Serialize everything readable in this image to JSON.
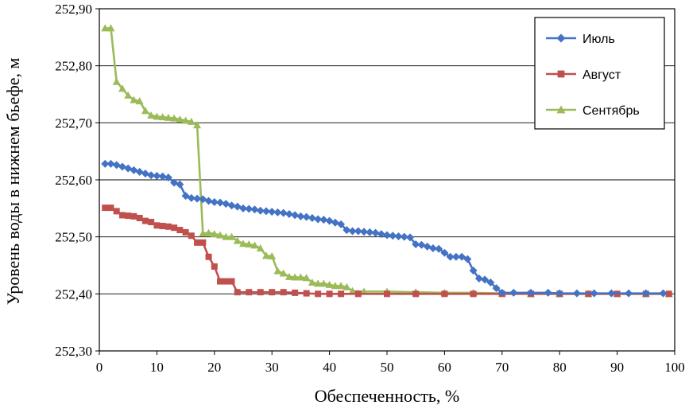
{
  "chart_data": {
    "type": "line",
    "xlabel": "Обеспеченность, %",
    "ylabel": "Уровень воды в нижнем бьефе, м",
    "xlim": [
      0,
      100
    ],
    "ylim": [
      252.3,
      252.9
    ],
    "x_ticks": [
      "0",
      "10",
      "20",
      "30",
      "40",
      "50",
      "60",
      "70",
      "80",
      "90",
      "100"
    ],
    "y_ticks": [
      "252,30",
      "252,40",
      "252,50",
      "252,60",
      "252,70",
      "252,80",
      "252,90"
    ],
    "grid": "horizontal",
    "legend_position": "top-right",
    "series": [
      {
        "name": "Июль",
        "color": "#4472C4",
        "marker": "diamond",
        "points": [
          [
            1,
            252.628
          ],
          [
            2,
            252.628
          ],
          [
            3,
            252.626
          ],
          [
            4,
            252.623
          ],
          [
            5,
            252.62
          ],
          [
            6,
            252.617
          ],
          [
            7,
            252.614
          ],
          [
            8,
            252.611
          ],
          [
            9,
            252.608
          ],
          [
            10,
            252.607
          ],
          [
            11,
            252.606
          ],
          [
            12,
            252.604
          ],
          [
            13,
            252.595
          ],
          [
            14,
            252.592
          ],
          [
            15,
            252.572
          ],
          [
            16,
            252.568
          ],
          [
            17,
            252.567
          ],
          [
            18,
            252.566
          ],
          [
            19,
            252.563
          ],
          [
            20,
            252.561
          ],
          [
            21,
            252.56
          ],
          [
            22,
            252.558
          ],
          [
            23,
            252.555
          ],
          [
            24,
            252.553
          ],
          [
            25,
            252.55
          ],
          [
            26,
            252.549
          ],
          [
            27,
            252.548
          ],
          [
            28,
            252.546
          ],
          [
            29,
            252.545
          ],
          [
            30,
            252.544
          ],
          [
            31,
            252.543
          ],
          [
            32,
            252.542
          ],
          [
            33,
            252.54
          ],
          [
            34,
            252.538
          ],
          [
            35,
            252.536
          ],
          [
            36,
            252.535
          ],
          [
            37,
            252.533
          ],
          [
            38,
            252.531
          ],
          [
            39,
            252.53
          ],
          [
            40,
            252.528
          ],
          [
            41,
            252.525
          ],
          [
            42,
            252.522
          ],
          [
            43,
            252.512
          ],
          [
            44,
            252.51
          ],
          [
            45,
            252.51
          ],
          [
            46,
            252.509
          ],
          [
            47,
            252.508
          ],
          [
            48,
            252.507
          ],
          [
            49,
            252.505
          ],
          [
            50,
            252.503
          ],
          [
            51,
            252.502
          ],
          [
            52,
            252.501
          ],
          [
            53,
            252.5
          ],
          [
            54,
            252.499
          ],
          [
            55,
            252.487
          ],
          [
            56,
            252.486
          ],
          [
            57,
            252.483
          ],
          [
            58,
            252.48
          ],
          [
            59,
            252.479
          ],
          [
            60,
            252.472
          ],
          [
            61,
            252.465
          ],
          [
            62,
            252.465
          ],
          [
            63,
            252.465
          ],
          [
            64,
            252.461
          ],
          [
            65,
            252.441
          ],
          [
            66,
            252.427
          ],
          [
            67,
            252.425
          ],
          [
            68,
            252.42
          ],
          [
            69,
            252.41
          ],
          [
            70,
            252.402
          ],
          [
            72,
            252.402
          ],
          [
            75,
            252.402
          ],
          [
            78,
            252.402
          ],
          [
            80,
            252.401
          ],
          [
            83,
            252.401
          ],
          [
            86,
            252.401
          ],
          [
            89,
            252.401
          ],
          [
            92,
            252.401
          ],
          [
            95,
            252.401
          ],
          [
            98,
            252.401
          ]
        ]
      },
      {
        "name": "Август",
        "color": "#C0504D",
        "marker": "square",
        "points": [
          [
            1,
            252.551
          ],
          [
            2,
            252.551
          ],
          [
            3,
            252.545
          ],
          [
            4,
            252.538
          ],
          [
            5,
            252.537
          ],
          [
            6,
            252.536
          ],
          [
            7,
            252.533
          ],
          [
            8,
            252.528
          ],
          [
            9,
            252.526
          ],
          [
            10,
            252.52
          ],
          [
            11,
            252.519
          ],
          [
            12,
            252.518
          ],
          [
            13,
            252.516
          ],
          [
            14,
            252.512
          ],
          [
            15,
            252.508
          ],
          [
            16,
            252.502
          ],
          [
            17,
            252.49
          ],
          [
            18,
            252.49
          ],
          [
            19,
            252.465
          ],
          [
            20,
            252.448
          ],
          [
            21,
            252.422
          ],
          [
            22,
            252.422
          ],
          [
            23,
            252.422
          ],
          [
            24,
            252.403
          ],
          [
            26,
            252.403
          ],
          [
            28,
            252.403
          ],
          [
            30,
            252.403
          ],
          [
            32,
            252.403
          ],
          [
            34,
            252.402
          ],
          [
            36,
            252.401
          ],
          [
            38,
            252.4
          ],
          [
            40,
            252.4
          ],
          [
            42,
            252.4
          ],
          [
            45,
            252.4
          ],
          [
            50,
            252.4
          ],
          [
            55,
            252.4
          ],
          [
            60,
            252.4
          ],
          [
            65,
            252.4
          ],
          [
            70,
            252.4
          ],
          [
            75,
            252.4
          ],
          [
            80,
            252.4
          ],
          [
            85,
            252.4
          ],
          [
            90,
            252.4
          ],
          [
            95,
            252.4
          ],
          [
            99,
            252.4
          ]
        ]
      },
      {
        "name": "Сентябрь",
        "color": "#9BBB59",
        "marker": "triangle",
        "points": [
          [
            1,
            252.866
          ],
          [
            2,
            252.866
          ],
          [
            3,
            252.772
          ],
          [
            4,
            252.76
          ],
          [
            5,
            252.748
          ],
          [
            6,
            252.74
          ],
          [
            7,
            252.738
          ],
          [
            8,
            252.721
          ],
          [
            9,
            252.713
          ],
          [
            10,
            252.711
          ],
          [
            11,
            252.71
          ],
          [
            12,
            252.709
          ],
          [
            13,
            252.708
          ],
          [
            14,
            252.706
          ],
          [
            15,
            252.704
          ],
          [
            16,
            252.702
          ],
          [
            17,
            252.696
          ],
          [
            18,
            252.506
          ],
          [
            19,
            252.507
          ],
          [
            20,
            252.505
          ],
          [
            21,
            252.503
          ],
          [
            22,
            252.5
          ],
          [
            23,
            252.5
          ],
          [
            24,
            252.493
          ],
          [
            25,
            252.488
          ],
          [
            26,
            252.487
          ],
          [
            27,
            252.485
          ],
          [
            28,
            252.48
          ],
          [
            29,
            252.467
          ],
          [
            30,
            252.466
          ],
          [
            31,
            252.44
          ],
          [
            32,
            252.436
          ],
          [
            33,
            252.43
          ],
          [
            34,
            252.429
          ],
          [
            35,
            252.429
          ],
          [
            36,
            252.428
          ],
          [
            37,
            252.42
          ],
          [
            38,
            252.418
          ],
          [
            39,
            252.418
          ],
          [
            40,
            252.416
          ],
          [
            41,
            252.414
          ],
          [
            42,
            252.414
          ],
          [
            43,
            252.412
          ],
          [
            44,
            252.405
          ],
          [
            46,
            252.404
          ],
          [
            50,
            252.404
          ],
          [
            55,
            252.403
          ],
          [
            60,
            252.402
          ],
          [
            65,
            252.402
          ],
          [
            70,
            252.401
          ],
          [
            75,
            252.4
          ],
          [
            80,
            252.4
          ],
          [
            85,
            252.4
          ],
          [
            90,
            252.4
          ],
          [
            95,
            252.4
          ],
          [
            99,
            252.4
          ]
        ]
      }
    ]
  }
}
